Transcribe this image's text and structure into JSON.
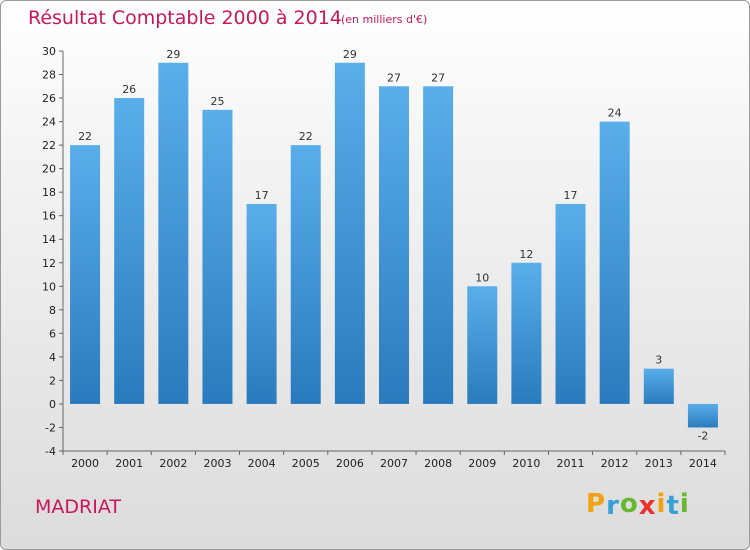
{
  "title": "Résultat Comptable 2000 à 2014",
  "subtitle": "(en milliers d'€)",
  "town": "MADRIAT",
  "logo": {
    "letters": [
      "P",
      "r",
      "o",
      "x",
      "i",
      "t",
      "i"
    ],
    "colors": [
      "#f2a20e",
      "#36a0d8",
      "#66b82e",
      "#e8322e",
      "#f2a20e",
      "#36a0d8",
      "#66b82e"
    ]
  },
  "colors": {
    "bar_top": "#5aaeea",
    "bar_bottom": "#2a7bbd",
    "title": "#c8175b"
  },
  "chart_data": {
    "type": "bar",
    "title": "Résultat Comptable 2000 à 2014",
    "subtitle": "(en milliers d'€)",
    "categories": [
      "2000",
      "2001",
      "2002",
      "2003",
      "2004",
      "2005",
      "2006",
      "2007",
      "2008",
      "2009",
      "2010",
      "2011",
      "2012",
      "2013",
      "2014"
    ],
    "values": [
      22,
      26,
      29,
      25,
      17,
      22,
      29,
      27,
      27,
      10,
      12,
      17,
      24,
      3,
      -2
    ],
    "ylim": [
      -4,
      30
    ],
    "yticks": [
      -4,
      -2,
      0,
      2,
      4,
      6,
      8,
      10,
      12,
      14,
      16,
      18,
      20,
      22,
      24,
      26,
      28,
      30
    ],
    "grid": false,
    "legend": "none"
  }
}
